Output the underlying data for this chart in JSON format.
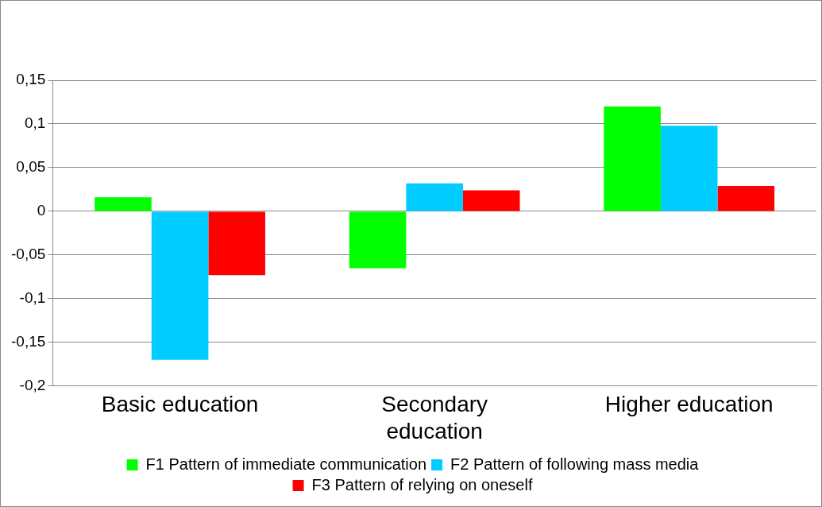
{
  "chart_data": {
    "type": "bar",
    "categories": [
      "Basic education",
      "Secondary education",
      "Higher education"
    ],
    "series": [
      {
        "name": "F1 Pattern of immediate communication",
        "color": "#00ff00",
        "values": [
          0.016,
          -0.065,
          0.12
        ]
      },
      {
        "name": "F2 Pattern of following mass media",
        "color": "#00ccff",
        "values": [
          -0.17,
          0.032,
          0.098
        ]
      },
      {
        "name": "F3 Pattern of relying on oneself",
        "color": "#ff0000",
        "values": [
          -0.073,
          0.024,
          0.029
        ]
      }
    ],
    "ylim": [
      -0.2,
      0.15
    ],
    "yticks": [
      {
        "value": 0.15,
        "label": "0,15"
      },
      {
        "value": 0.1,
        "label": "0,1"
      },
      {
        "value": 0.05,
        "label": "0,05"
      },
      0,
      {
        "value": -0.05,
        "label": "-0,05"
      },
      {
        "value": -0.1,
        "label": "-0,1"
      },
      {
        "value": -0.15,
        "label": "-0,15"
      },
      {
        "value": -0.2,
        "label": "-0,2"
      }
    ],
    "grid": "y",
    "legend": "bottom"
  }
}
